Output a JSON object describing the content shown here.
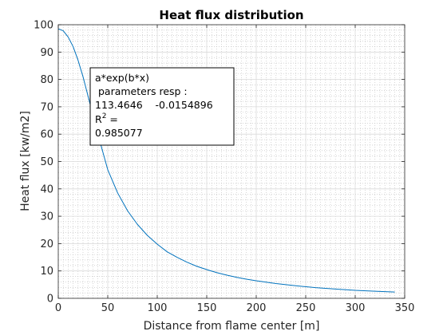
{
  "chart_data": {
    "type": "line",
    "title": "Heat flux distribution",
    "xlabel": "Distance from flame center [m]",
    "ylabel": "Heat flux [kw/m2]",
    "xlim": [
      0,
      350
    ],
    "ylim": [
      0,
      100
    ],
    "xticks": [
      0,
      50,
      100,
      150,
      200,
      250,
      300,
      350
    ],
    "yticks": [
      0,
      10,
      20,
      30,
      40,
      50,
      60,
      70,
      80,
      90,
      100
    ],
    "grid": true,
    "minor_grid": true,
    "series": [
      {
        "color": "#0072bd",
        "x": [
          0,
          5,
          10,
          15,
          20,
          25,
          30,
          35,
          40,
          45,
          50,
          60,
          70,
          80,
          90,
          100,
          110,
          120,
          130,
          140,
          150,
          160,
          170,
          180,
          190,
          200,
          220,
          240,
          260,
          280,
          300,
          320,
          340
        ],
        "y": [
          98.5,
          97.8,
          95.5,
          92.0,
          87.0,
          81.0,
          74.0,
          67.0,
          60.0,
          53.5,
          47.0,
          38.5,
          32.0,
          27.0,
          23.0,
          19.8,
          17.0,
          15.0,
          13.2,
          11.7,
          10.5,
          9.4,
          8.5,
          7.7,
          7.0,
          6.4,
          5.4,
          4.6,
          3.9,
          3.4,
          2.9,
          2.6,
          2.3
        ]
      }
    ],
    "annotation": {
      "lines": [
        "a*exp(b*x)",
        " parameters resp :",
        "113.4646    -0.0154896",
        "R",
        "2",
        " =",
        "0.985077"
      ]
    }
  }
}
